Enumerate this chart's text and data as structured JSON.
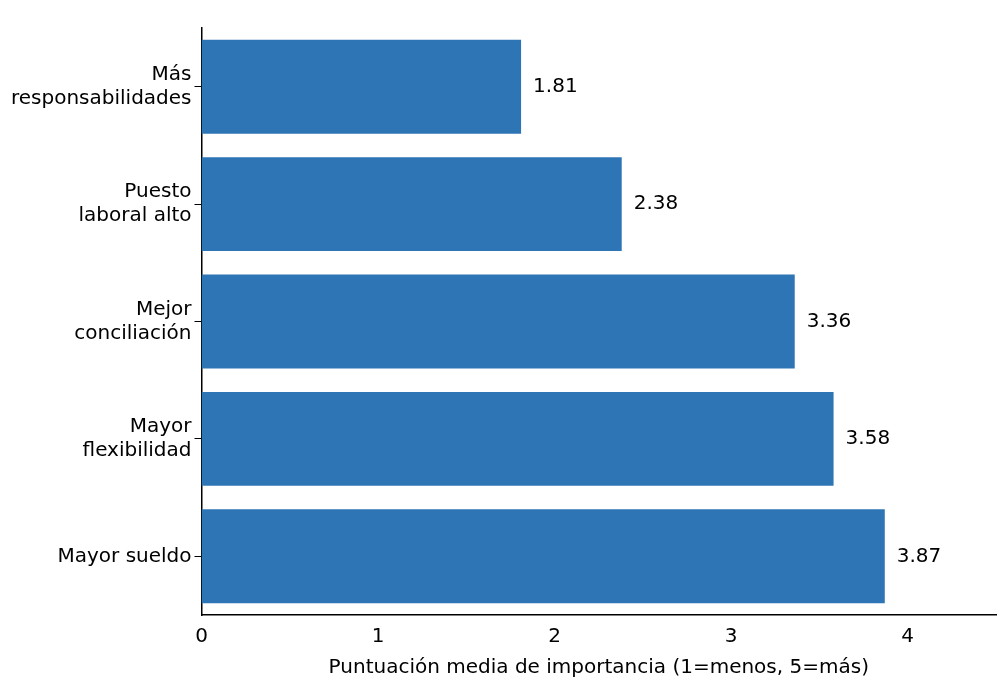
{
  "chart_data": {
    "type": "bar",
    "orientation": "horizontal",
    "categories": [
      "Más\nresponsabilidades",
      "Puesto\nlaboral alto",
      "Mejor\nconciliación",
      "Mayor\nflexibilidad",
      "Mayor sueldo"
    ],
    "values": [
      1.81,
      2.38,
      3.36,
      3.58,
      3.87
    ],
    "color": "#2e75b6",
    "xlabel": "Puntuación media de importancia (1=menos, 5=más)",
    "xlim": [
      0,
      4.5
    ],
    "xticks": [
      0,
      1,
      2,
      3,
      4
    ],
    "grid": false,
    "data_labels": true
  }
}
